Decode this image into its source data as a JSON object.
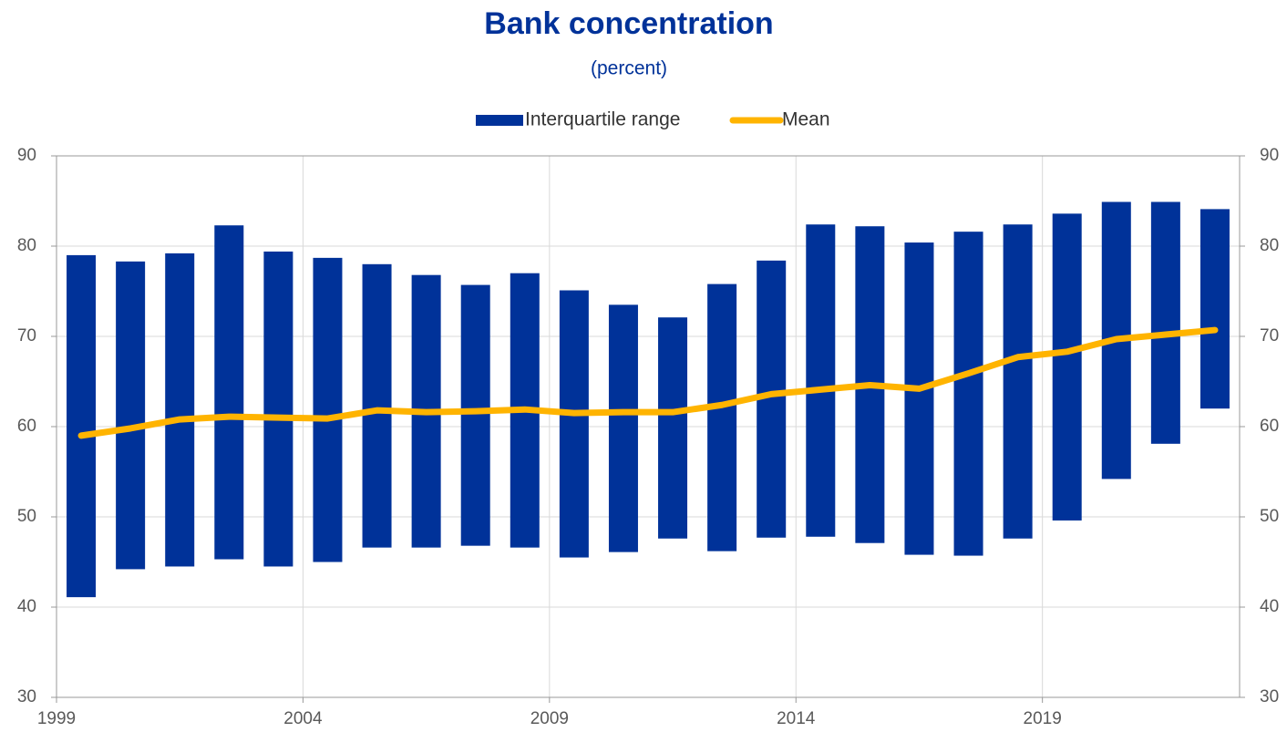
{
  "chart_data": {
    "type": "range-bar-line",
    "title": "Bank concentration",
    "subtitle": "(percent)",
    "categories": [
      "1999",
      null,
      null,
      null,
      null,
      "2004",
      null,
      null,
      null,
      null,
      "2009",
      null,
      null,
      null,
      null,
      "2014",
      null,
      null,
      null,
      null,
      "2019",
      null,
      null,
      null
    ],
    "series": [
      {
        "name": "Interquartile range",
        "color": "#003299",
        "low": [
          41.1,
          44.2,
          44.5,
          45.3,
          44.5,
          45.0,
          46.6,
          46.6,
          46.8,
          46.6,
          45.5,
          46.1,
          47.6,
          46.2,
          47.7,
          47.8,
          47.1,
          45.8,
          45.7,
          47.6,
          49.6,
          54.2,
          58.1,
          62.0
        ],
        "high": [
          79.0,
          78.3,
          79.2,
          82.3,
          79.4,
          78.7,
          78.0,
          76.8,
          75.7,
          77.0,
          75.1,
          73.5,
          72.1,
          75.8,
          78.4,
          82.4,
          82.2,
          80.4,
          81.6,
          82.4,
          83.6,
          84.9,
          84.9,
          84.1
        ]
      },
      {
        "name": "Mean",
        "color": "#FFB400",
        "values": [
          59.0,
          59.8,
          60.8,
          61.1,
          61.0,
          60.9,
          61.8,
          61.6,
          61.7,
          61.9,
          61.5,
          61.6,
          61.6,
          62.4,
          63.6,
          64.1,
          64.6,
          64.2,
          65.9,
          67.7,
          68.3,
          69.7,
          70.2,
          70.7
        ]
      }
    ],
    "ylim": [
      30,
      90
    ],
    "yticks": [
      30,
      40,
      50,
      60,
      70,
      80,
      90
    ],
    "grid": true,
    "legend": "top"
  }
}
